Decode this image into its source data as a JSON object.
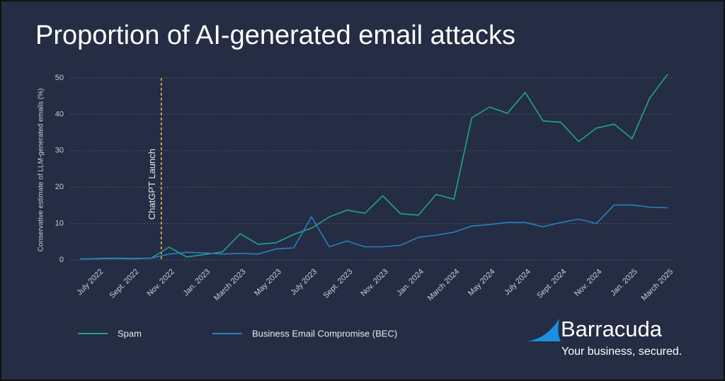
{
  "chart_data": {
    "type": "line",
    "title": "Proportion of AI-generated email attacks",
    "y_label": "Conservative estimate of LLM-generated emails (%)",
    "categories": [
      null,
      "July 2022",
      null,
      "Sept. 2022",
      null,
      "Nov. 2022",
      null,
      "Jan. 2023",
      null,
      "March 2023",
      null,
      "May 2023",
      null,
      "July 2023",
      null,
      "Sept. 2023",
      null,
      "Nov. 2023",
      null,
      "Jan. 2024",
      null,
      "March 2024",
      null,
      "May 2024",
      null,
      "July 2024",
      null,
      "Sept. 2024",
      null,
      "Nov. 2024",
      null,
      "Jan. 2025",
      null,
      "March 2025"
    ],
    "series": [
      {
        "name": "Spam",
        "color": "#1fa58a",
        "values": [
          0.3,
          0.3,
          0.4,
          0.3,
          0.5,
          3.5,
          0.8,
          1.5,
          2.2,
          7.2,
          4.3,
          4.7,
          7.0,
          8.7,
          11.8,
          13.7,
          12.8,
          17.6,
          12.7,
          12.3,
          18.0,
          16.7,
          39.0,
          42.0,
          40.3,
          46.0,
          38.2,
          37.8,
          32.5,
          36.2,
          37.3,
          33.3,
          44.5,
          51.0
        ]
      },
      {
        "name": "Business Email Compromise (BEC)",
        "color": "#2a7fc0",
        "values": [
          0.2,
          0.4,
          0.5,
          0.4,
          0.5,
          1.6,
          2.1,
          1.9,
          1.6,
          1.8,
          1.6,
          3.0,
          3.3,
          11.8,
          3.6,
          5.2,
          3.6,
          3.6,
          4.0,
          6.2,
          6.8,
          7.6,
          9.3,
          9.7,
          10.3,
          10.3,
          9.1,
          10.3,
          11.2,
          10.0,
          15.1,
          15.1,
          14.5,
          14.3
        ]
      }
    ],
    "ylim": [
      0,
      50
    ],
    "yticks": [
      0,
      10,
      20,
      30,
      40,
      50
    ],
    "grid": true,
    "legend": "bottom",
    "annotations": [
      {
        "text": "ChatGPT Launch",
        "x": "Nov. 2022",
        "color": "#e8c547"
      }
    ]
  },
  "brand": {
    "name": "Barracuda",
    "tagline": "Your business, secured."
  }
}
